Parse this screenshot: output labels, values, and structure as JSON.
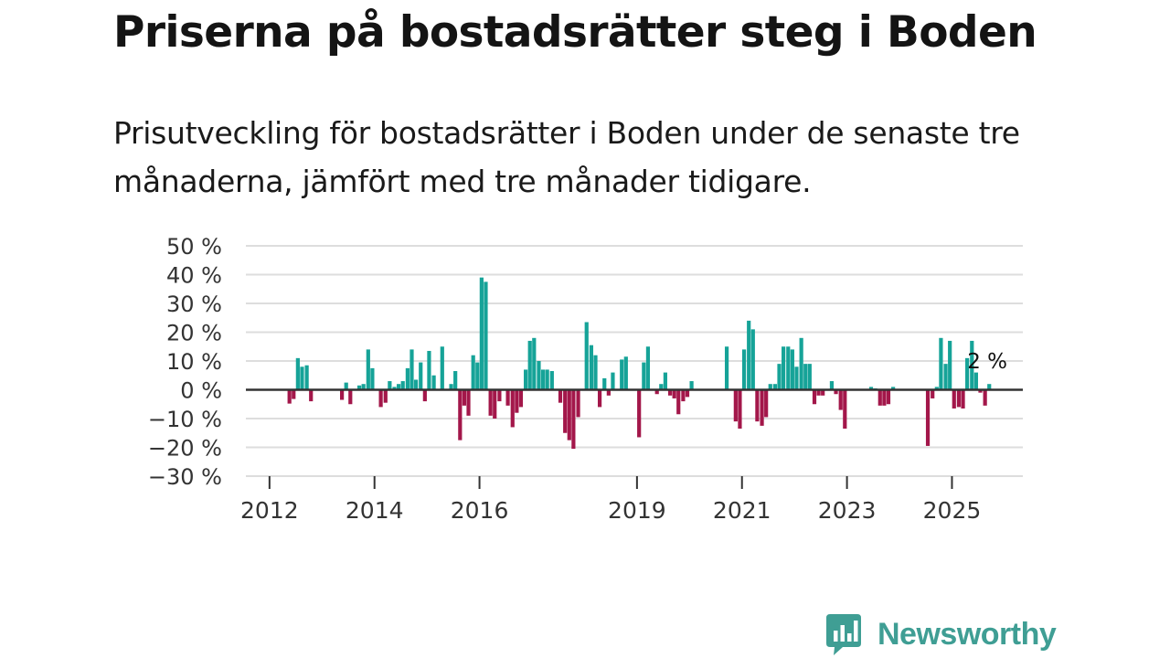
{
  "title": "Priserna på bostadsrätter steg i Boden",
  "subtitle": "Prisutveckling för bostadsrätter i Boden under de senaste tre månaderna, jämfört med tre månader tidigare.",
  "brand": {
    "name": "Newsworthy",
    "logo_icon": "newsworthy-chart-bubble-icon",
    "color": "#3f9e94"
  },
  "colors": {
    "positive": "#16a398",
    "negative": "#a3174a",
    "grid": "#dddddd",
    "zero_line": "#333333"
  },
  "chart_data": {
    "type": "bar",
    "title": "Priserna på bostadsrätter steg i Boden",
    "xlabel": "",
    "ylabel": "",
    "unit": "%",
    "ylim": [
      -30,
      50
    ],
    "yticks": [
      50,
      40,
      30,
      20,
      10,
      0,
      -10,
      -20,
      -30
    ],
    "ytick_labels": [
      "50 %",
      "40 %",
      "30 %",
      "20 %",
      "10 %",
      "0 %",
      "−10 %",
      "−20 %",
      "−30 %"
    ],
    "xlim": [
      2011.55,
      2026.35
    ],
    "xticks": [
      2012,
      2014,
      2016,
      2019,
      2021,
      2023,
      2025
    ],
    "xtick_labels": [
      "2012",
      "2014",
      "2016",
      "2019",
      "2021",
      "2023",
      "2025"
    ],
    "grid": true,
    "last_value_label": "2 %",
    "series": [
      {
        "name": "Prisutveckling",
        "points": [
          {
            "x": 2012.38,
            "y": -4.8
          },
          {
            "x": 2012.46,
            "y": -3.2
          },
          {
            "x": 2012.54,
            "y": 11
          },
          {
            "x": 2012.62,
            "y": 8
          },
          {
            "x": 2012.71,
            "y": 8.5
          },
          {
            "x": 2012.79,
            "y": -4
          },
          {
            "x": 2013.38,
            "y": -3.5
          },
          {
            "x": 2013.46,
            "y": 2.5
          },
          {
            "x": 2013.54,
            "y": -5
          },
          {
            "x": 2013.71,
            "y": 1.5
          },
          {
            "x": 2013.79,
            "y": 2
          },
          {
            "x": 2013.88,
            "y": 14
          },
          {
            "x": 2013.96,
            "y": 7.5
          },
          {
            "x": 2014.12,
            "y": -6
          },
          {
            "x": 2014.21,
            "y": -4.5
          },
          {
            "x": 2014.29,
            "y": 3
          },
          {
            "x": 2014.38,
            "y": 1
          },
          {
            "x": 2014.46,
            "y": 2
          },
          {
            "x": 2014.54,
            "y": 3
          },
          {
            "x": 2014.63,
            "y": 7.5
          },
          {
            "x": 2014.71,
            "y": 14
          },
          {
            "x": 2014.79,
            "y": 3.5
          },
          {
            "x": 2014.88,
            "y": 9.5
          },
          {
            "x": 2014.96,
            "y": -4
          },
          {
            "x": 2015.04,
            "y": 13.5
          },
          {
            "x": 2015.13,
            "y": 5
          },
          {
            "x": 2015.29,
            "y": 15
          },
          {
            "x": 2015.46,
            "y": 2
          },
          {
            "x": 2015.54,
            "y": 6.5
          },
          {
            "x": 2015.63,
            "y": -17.5
          },
          {
            "x": 2015.71,
            "y": -5.5
          },
          {
            "x": 2015.79,
            "y": -9
          },
          {
            "x": 2015.88,
            "y": 12
          },
          {
            "x": 2015.96,
            "y": 9.5
          },
          {
            "x": 2016.04,
            "y": 39
          },
          {
            "x": 2016.12,
            "y": 37.5
          },
          {
            "x": 2016.21,
            "y": -9
          },
          {
            "x": 2016.29,
            "y": -10
          },
          {
            "x": 2016.38,
            "y": -4
          },
          {
            "x": 2016.54,
            "y": -5.5
          },
          {
            "x": 2016.63,
            "y": -13
          },
          {
            "x": 2016.71,
            "y": -8
          },
          {
            "x": 2016.79,
            "y": -6
          },
          {
            "x": 2016.88,
            "y": 7
          },
          {
            "x": 2016.96,
            "y": 17
          },
          {
            "x": 2017.04,
            "y": 18
          },
          {
            "x": 2017.13,
            "y": 10
          },
          {
            "x": 2017.21,
            "y": 7
          },
          {
            "x": 2017.29,
            "y": 7
          },
          {
            "x": 2017.38,
            "y": 6.5
          },
          {
            "x": 2017.54,
            "y": -4.5
          },
          {
            "x": 2017.63,
            "y": -15
          },
          {
            "x": 2017.71,
            "y": -17.5
          },
          {
            "x": 2017.79,
            "y": -20.5
          },
          {
            "x": 2017.88,
            "y": -9.5
          },
          {
            "x": 2018.04,
            "y": 23.5
          },
          {
            "x": 2018.13,
            "y": 15.5
          },
          {
            "x": 2018.21,
            "y": 12
          },
          {
            "x": 2018.29,
            "y": -6
          },
          {
            "x": 2018.38,
            "y": 4
          },
          {
            "x": 2018.46,
            "y": -2
          },
          {
            "x": 2018.54,
            "y": 6
          },
          {
            "x": 2018.71,
            "y": 10.5
          },
          {
            "x": 2018.79,
            "y": 11.5
          },
          {
            "x": 2019.04,
            "y": -16.5
          },
          {
            "x": 2019.13,
            "y": 9.5
          },
          {
            "x": 2019.21,
            "y": 15
          },
          {
            "x": 2019.38,
            "y": -1.5
          },
          {
            "x": 2019.46,
            "y": 2
          },
          {
            "x": 2019.54,
            "y": 6
          },
          {
            "x": 2019.63,
            "y": -2
          },
          {
            "x": 2019.71,
            "y": -3
          },
          {
            "x": 2019.79,
            "y": -8.5
          },
          {
            "x": 2019.88,
            "y": -4
          },
          {
            "x": 2019.96,
            "y": -2.5
          },
          {
            "x": 2020.04,
            "y": 3
          },
          {
            "x": 2020.71,
            "y": 15
          },
          {
            "x": 2020.88,
            "y": -11
          },
          {
            "x": 2020.96,
            "y": -13.5
          },
          {
            "x": 2021.04,
            "y": 14
          },
          {
            "x": 2021.13,
            "y": 24
          },
          {
            "x": 2021.21,
            "y": 21
          },
          {
            "x": 2021.29,
            "y": -11
          },
          {
            "x": 2021.38,
            "y": -12.5
          },
          {
            "x": 2021.46,
            "y": -9.5
          },
          {
            "x": 2021.54,
            "y": 2
          },
          {
            "x": 2021.63,
            "y": 2
          },
          {
            "x": 2021.71,
            "y": 9
          },
          {
            "x": 2021.79,
            "y": 15
          },
          {
            "x": 2021.88,
            "y": 15
          },
          {
            "x": 2021.96,
            "y": 14
          },
          {
            "x": 2022.04,
            "y": 8
          },
          {
            "x": 2022.13,
            "y": 18
          },
          {
            "x": 2022.21,
            "y": 9
          },
          {
            "x": 2022.29,
            "y": 9
          },
          {
            "x": 2022.38,
            "y": -5
          },
          {
            "x": 2022.46,
            "y": -2
          },
          {
            "x": 2022.54,
            "y": -2
          },
          {
            "x": 2022.71,
            "y": 3
          },
          {
            "x": 2022.79,
            "y": -1.5
          },
          {
            "x": 2022.88,
            "y": -7
          },
          {
            "x": 2022.96,
            "y": -13.5
          },
          {
            "x": 2023.46,
            "y": 1
          },
          {
            "x": 2023.54,
            "y": 0.5
          },
          {
            "x": 2023.63,
            "y": -5.5
          },
          {
            "x": 2023.71,
            "y": -5.5
          },
          {
            "x": 2023.79,
            "y": -5
          },
          {
            "x": 2023.88,
            "y": 1
          },
          {
            "x": 2024.54,
            "y": -19.5
          },
          {
            "x": 2024.63,
            "y": -3
          },
          {
            "x": 2024.71,
            "y": 1
          },
          {
            "x": 2024.79,
            "y": 18
          },
          {
            "x": 2024.88,
            "y": 9
          },
          {
            "x": 2024.96,
            "y": 17
          },
          {
            "x": 2025.04,
            "y": -6.5
          },
          {
            "x": 2025.13,
            "y": -6
          },
          {
            "x": 2025.21,
            "y": -6.5
          },
          {
            "x": 2025.29,
            "y": 11
          },
          {
            "x": 2025.38,
            "y": 17
          },
          {
            "x": 2025.46,
            "y": 6
          },
          {
            "x": 2025.54,
            "y": -1
          },
          {
            "x": 2025.63,
            "y": -5.5
          },
          {
            "x": 2025.71,
            "y": 2
          }
        ]
      }
    ]
  }
}
